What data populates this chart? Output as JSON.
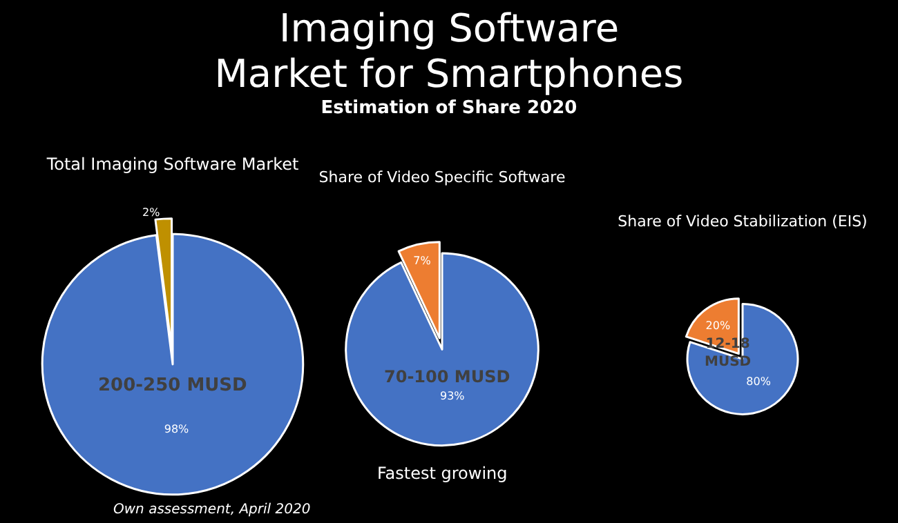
{
  "chart_data": [
    {
      "type": "other",
      "title": "Imaging Software\nMarket for Smartphones",
      "subtitle": "Estimation of Share 2020"
    },
    {
      "type": "pie",
      "title": "Total Imaging Software Market",
      "categories": [
        null,
        null
      ],
      "values": [
        2,
        98
      ],
      "colors": [
        "#bf9000",
        "#4472c4"
      ],
      "value_labels": [
        "2%",
        "98%"
      ],
      "annotations": [
        "200-250 MUSD",
        "Own assessment, April 2020"
      ]
    },
    {
      "type": "pie",
      "title": "Share of Video Specific Software",
      "categories": [
        null,
        null
      ],
      "values": [
        7,
        93
      ],
      "colors": [
        "#ed7d31",
        "#4472c4"
      ],
      "value_labels": [
        "7%",
        "93%"
      ],
      "annotations": [
        "70-100 MUSD",
        "Fastest growing"
      ]
    },
    {
      "type": "pie",
      "title": "Share of Video Stabilization (EIS)",
      "categories": [
        null,
        null
      ],
      "values": [
        20,
        80
      ],
      "colors": [
        "#ed7d31",
        "#4472c4"
      ],
      "value_labels": [
        "20%",
        "80%"
      ],
      "annotations": [
        "12-18\nMUSD"
      ]
    }
  ]
}
